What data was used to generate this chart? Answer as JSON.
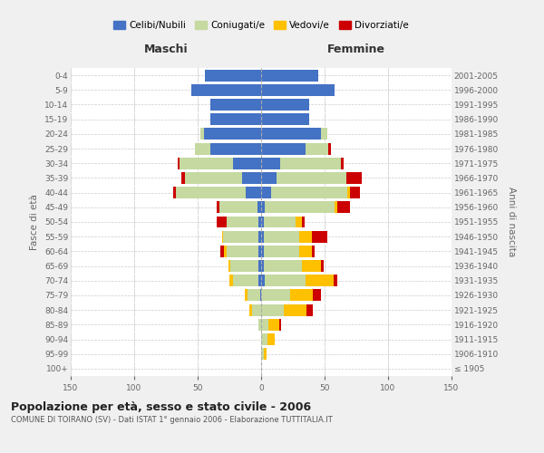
{
  "age_groups": [
    "100+",
    "95-99",
    "90-94",
    "85-89",
    "80-84",
    "75-79",
    "70-74",
    "65-69",
    "60-64",
    "55-59",
    "50-54",
    "45-49",
    "40-44",
    "35-39",
    "30-34",
    "25-29",
    "20-24",
    "15-19",
    "10-14",
    "5-9",
    "0-4"
  ],
  "birth_years": [
    "≤ 1905",
    "1906-1910",
    "1911-1915",
    "1916-1920",
    "1921-1925",
    "1926-1930",
    "1931-1935",
    "1936-1940",
    "1941-1945",
    "1946-1950",
    "1951-1955",
    "1956-1960",
    "1961-1965",
    "1966-1970",
    "1971-1975",
    "1976-1980",
    "1981-1985",
    "1986-1990",
    "1991-1995",
    "1996-2000",
    "2001-2005"
  ],
  "males": {
    "celibi": [
      0,
      0,
      0,
      0,
      0,
      1,
      2,
      2,
      2,
      2,
      2,
      3,
      12,
      15,
      22,
      40,
      45,
      40,
      40,
      55,
      44
    ],
    "coniugati": [
      0,
      0,
      0,
      2,
      7,
      10,
      20,
      22,
      25,
      28,
      25,
      30,
      55,
      45,
      42,
      12,
      3,
      0,
      0,
      0,
      0
    ],
    "vedovi": [
      0,
      0,
      0,
      0,
      2,
      2,
      3,
      2,
      2,
      1,
      0,
      0,
      0,
      0,
      0,
      0,
      0,
      0,
      0,
      0,
      0
    ],
    "divorziati": [
      0,
      0,
      0,
      0,
      0,
      0,
      0,
      0,
      3,
      0,
      8,
      2,
      2,
      3,
      2,
      0,
      0,
      0,
      0,
      0,
      0
    ]
  },
  "females": {
    "nubili": [
      0,
      0,
      0,
      0,
      0,
      0,
      3,
      2,
      2,
      2,
      2,
      3,
      8,
      12,
      15,
      35,
      47,
      38,
      38,
      58,
      45
    ],
    "coniugate": [
      0,
      2,
      5,
      6,
      18,
      23,
      32,
      30,
      28,
      28,
      25,
      55,
      60,
      55,
      48,
      18,
      5,
      0,
      0,
      0,
      0
    ],
    "vedove": [
      0,
      2,
      6,
      8,
      18,
      18,
      22,
      15,
      10,
      10,
      5,
      2,
      2,
      0,
      0,
      0,
      0,
      0,
      0,
      0,
      0
    ],
    "divorziate": [
      0,
      0,
      0,
      2,
      5,
      6,
      3,
      2,
      2,
      12,
      2,
      10,
      8,
      12,
      2,
      2,
      0,
      0,
      0,
      0,
      0
    ]
  },
  "colors": {
    "celibi": "#4472c4",
    "coniugati": "#c5d9a0",
    "vedovi": "#ffc000",
    "divorziati": "#cc0000"
  },
  "xlim": 150,
  "title": "Popolazione per età, sesso e stato civile - 2006",
  "subtitle": "COMUNE DI TOIRANO (SV) - Dati ISTAT 1° gennaio 2006 - Elaborazione TUTTITALIA.IT",
  "ylabel_left": "Fasce di età",
  "ylabel_right": "Anni di nascita",
  "xlabel_left": "Maschi",
  "xlabel_right": "Femmine",
  "bg_color": "#f0f0f0",
  "plot_bg_color": "#ffffff",
  "grid_color": "#cccccc"
}
